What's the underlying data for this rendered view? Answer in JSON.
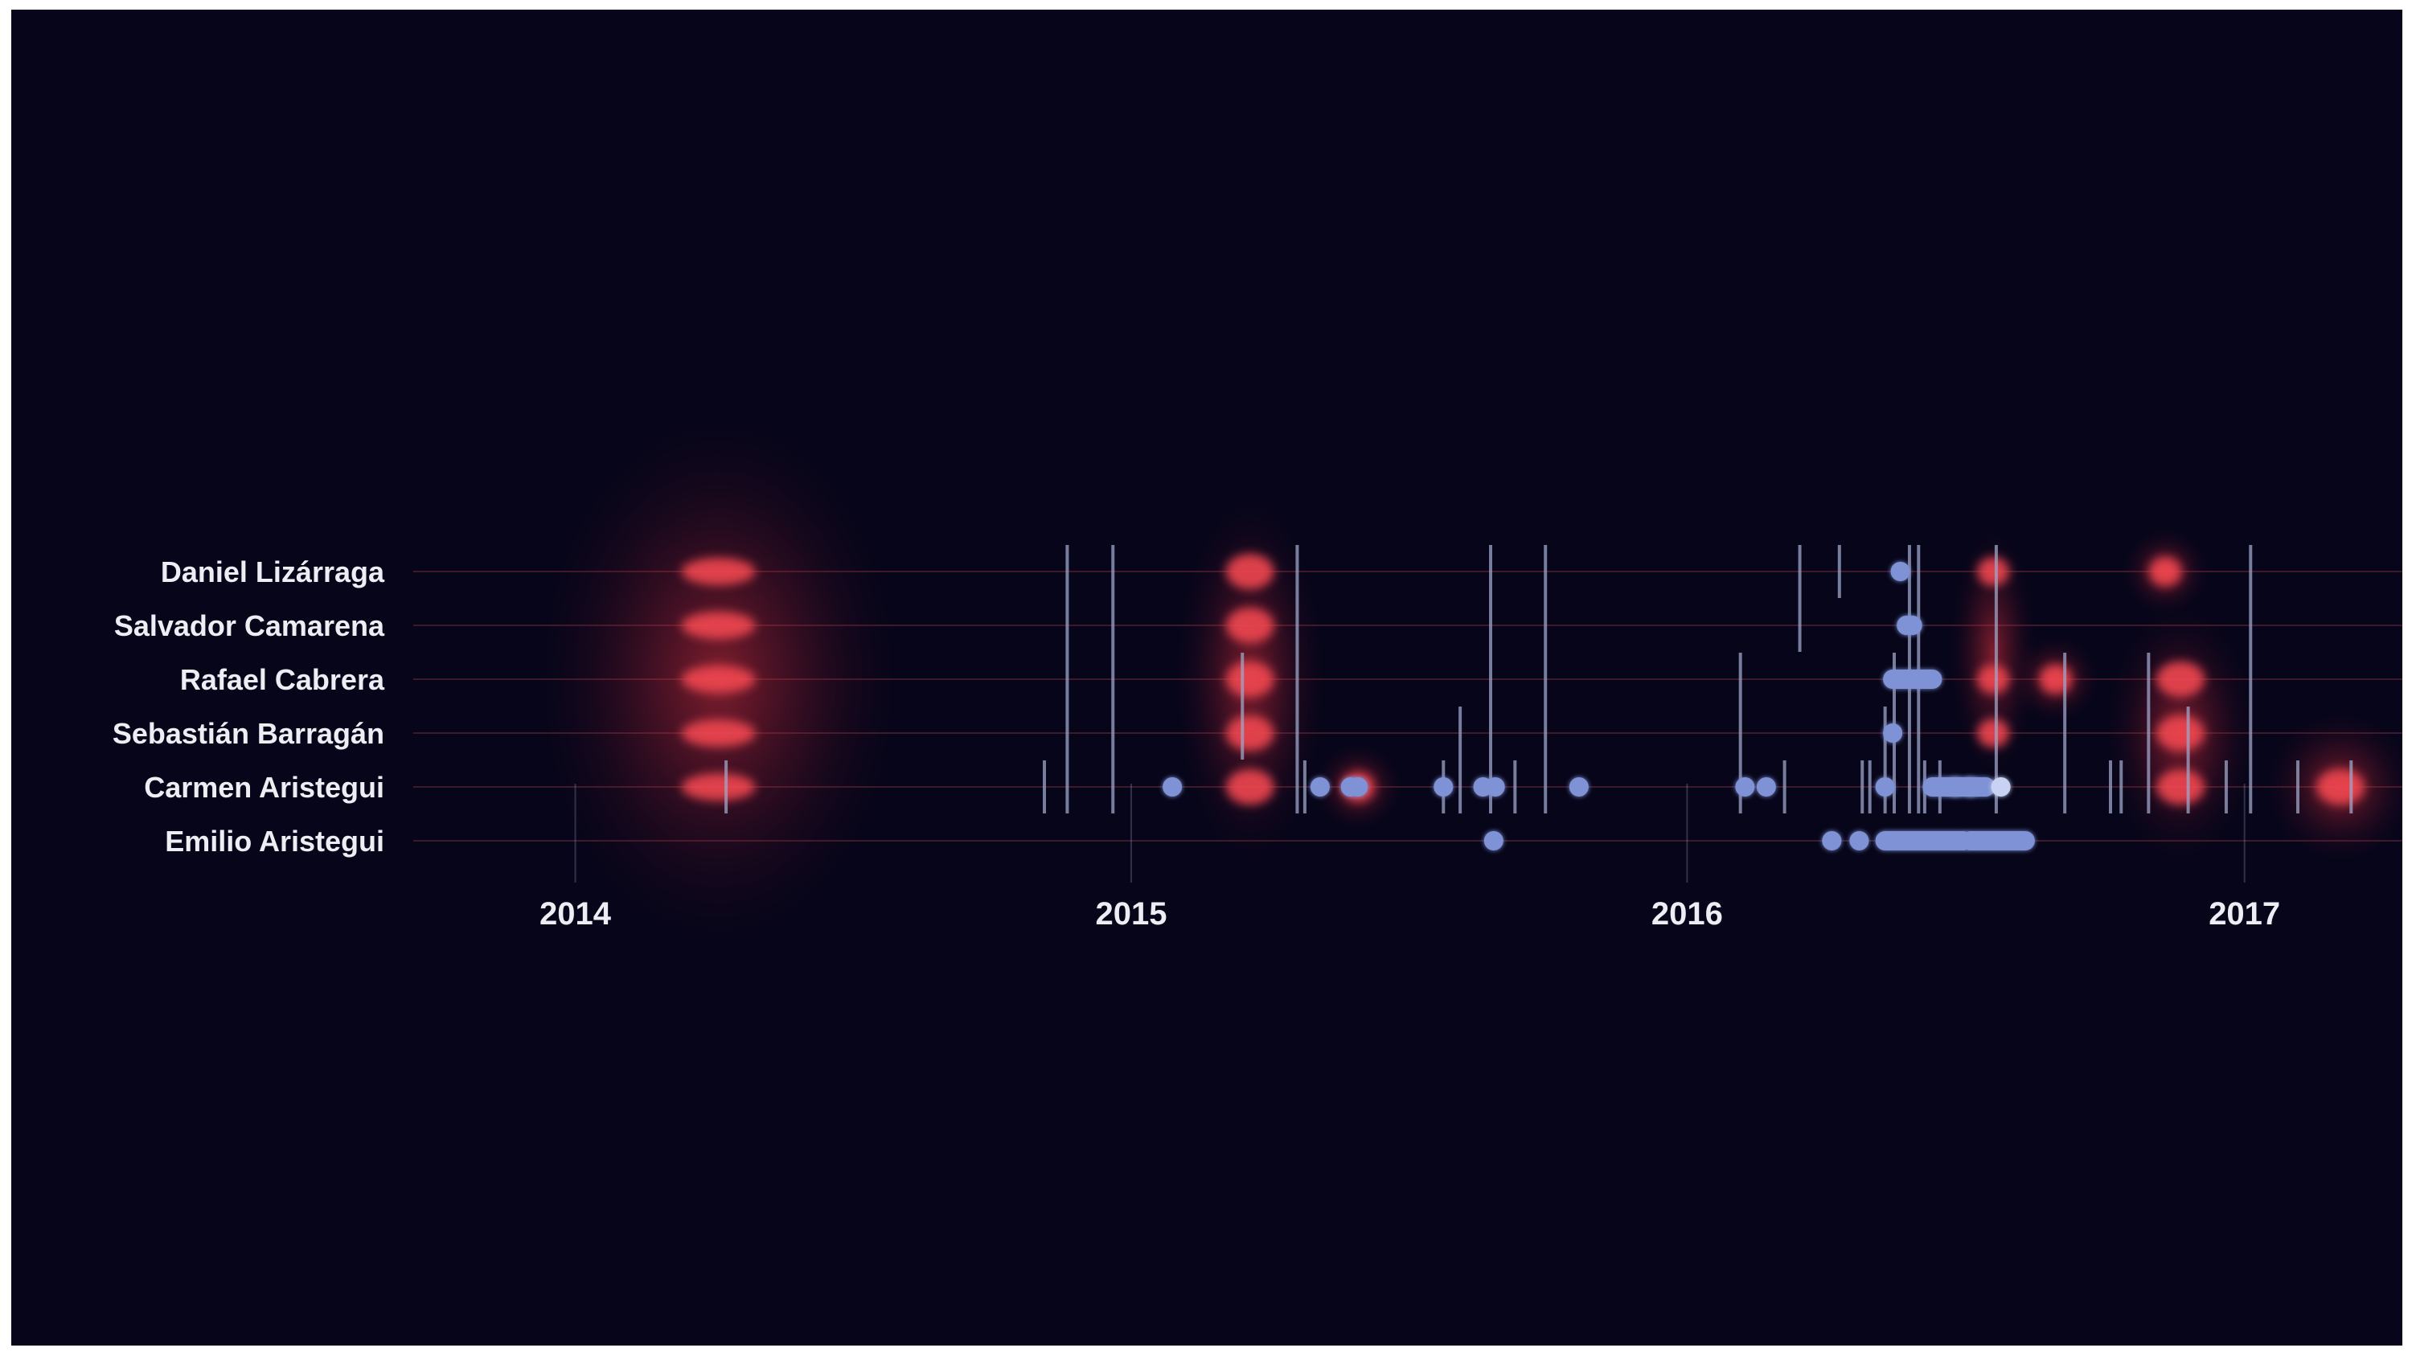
{
  "chart_data": {
    "type": "scatter",
    "x_type": "date",
    "xlim": [
      "2013-11-01",
      "2017-05-01"
    ],
    "xticks": [
      {
        "date": "2014-01-01",
        "label": "2014"
      },
      {
        "date": "2015-01-01",
        "label": "2015"
      },
      {
        "date": "2016-01-01",
        "label": "2016"
      },
      {
        "date": "2017-01-01",
        "label": "2017"
      }
    ],
    "rows": [
      "Daniel Lizárraga",
      "Salvador Camarena",
      "Rafael Cabrera",
      "Sebastián Barragán",
      "Carmen Aristegui",
      "Emilio Aristegui"
    ],
    "colors": {
      "background": "#06051a",
      "red_glow": "#e0323c",
      "red_core": "#f04650",
      "blue_dot": "#7f92d6",
      "blue_light": "#c9d2f2",
      "event_line": "#9da6c8",
      "row_line": "#6e2a38",
      "label": "#eceef4"
    },
    "red_glows": [
      {
        "date": "2014-04-05",
        "rows": [
          0,
          1,
          2,
          3,
          4
        ],
        "size": "large"
      },
      {
        "date": "2015-03-20",
        "rows": [
          0,
          1,
          2,
          3,
          4
        ],
        "size": "medium"
      },
      {
        "date": "2015-05-30",
        "rows": [
          4
        ],
        "size": "small"
      },
      {
        "date": "2016-07-20",
        "rows": [
          0,
          2,
          3
        ],
        "size": "small"
      },
      {
        "date": "2016-08-30",
        "rows": [
          2
        ],
        "size": "small"
      },
      {
        "date": "2016-11-10",
        "rows": [
          0
        ],
        "size": "small"
      },
      {
        "date": "2016-11-20",
        "rows": [
          2,
          3,
          4
        ],
        "size": "medium"
      },
      {
        "date": "2017-03-05",
        "rows": [
          4
        ],
        "size": "medium"
      }
    ],
    "blue_dots": [
      {
        "date": "2015-01-28",
        "row": 4
      },
      {
        "date": "2015-05-05",
        "row": 4
      },
      {
        "date": "2015-05-25",
        "row": 4
      },
      {
        "date": "2015-05-30",
        "row": 4
      },
      {
        "date": "2015-07-25",
        "row": 4
      },
      {
        "date": "2015-08-20",
        "row": 4
      },
      {
        "date": "2015-08-28",
        "row": 4
      },
      {
        "date": "2015-10-22",
        "row": 4
      },
      {
        "date": "2015-08-27",
        "row": 5
      },
      {
        "date": "2016-02-08",
        "row": 4
      },
      {
        "date": "2016-02-22",
        "row": 4
      },
      {
        "date": "2016-04-05",
        "row": 5
      },
      {
        "date": "2016-04-23",
        "row": 5
      },
      {
        "date": "2016-05-10",
        "row": 4
      },
      {
        "date": "2016-05-20",
        "row": 0
      },
      {
        "date": "2016-05-24",
        "row": 1
      },
      {
        "date": "2016-05-28",
        "row": 1
      },
      {
        "date": "2016-05-15",
        "row": 3
      },
      {
        "date": "2016-06-25",
        "row": 4
      },
      {
        "date": "2016-07-05",
        "row": 4
      },
      {
        "date": "2016-07-25",
        "row": 4,
        "light": true
      }
    ],
    "blue_segments": [
      {
        "start": "2016-05-15",
        "end": "2016-06-10",
        "row": 2
      },
      {
        "start": "2016-06-10",
        "end": "2016-07-15",
        "row": 4
      },
      {
        "start": "2016-05-10",
        "end": "2016-06-30",
        "row": 5
      },
      {
        "start": "2016-07-05",
        "end": "2016-08-10",
        "row": 5
      }
    ],
    "event_lines": [
      {
        "date": "2014-04-10",
        "rows": [
          4,
          4
        ]
      },
      {
        "date": "2014-11-05",
        "rows": [
          4,
          4
        ]
      },
      {
        "date": "2014-11-20",
        "rows": [
          0,
          4
        ]
      },
      {
        "date": "2014-12-20",
        "rows": [
          0,
          4
        ]
      },
      {
        "date": "2015-03-15",
        "rows": [
          2,
          3
        ]
      },
      {
        "date": "2015-04-20",
        "rows": [
          0,
          4
        ]
      },
      {
        "date": "2015-04-25",
        "rows": [
          4,
          4
        ]
      },
      {
        "date": "2015-07-25",
        "rows": [
          4,
          4
        ]
      },
      {
        "date": "2015-08-05",
        "rows": [
          3,
          4
        ]
      },
      {
        "date": "2015-08-25",
        "rows": [
          0,
          4
        ]
      },
      {
        "date": "2015-09-10",
        "rows": [
          4,
          4
        ]
      },
      {
        "date": "2015-09-30",
        "rows": [
          0,
          4
        ]
      },
      {
        "date": "2016-02-05",
        "rows": [
          2,
          4
        ]
      },
      {
        "date": "2016-03-05",
        "rows": [
          4,
          4
        ]
      },
      {
        "date": "2016-03-15",
        "rows": [
          0,
          1
        ]
      },
      {
        "date": "2016-04-10",
        "rows": [
          0,
          0
        ]
      },
      {
        "date": "2016-04-25",
        "rows": [
          4,
          4
        ]
      },
      {
        "date": "2016-04-30",
        "rows": [
          4,
          4
        ]
      },
      {
        "date": "2016-05-10",
        "rows": [
          3,
          4
        ]
      },
      {
        "date": "2016-05-16",
        "rows": [
          2,
          4
        ]
      },
      {
        "date": "2016-05-26",
        "rows": [
          0,
          4
        ]
      },
      {
        "date": "2016-06-01",
        "rows": [
          0,
          4
        ]
      },
      {
        "date": "2016-06-05",
        "rows": [
          4,
          4
        ]
      },
      {
        "date": "2016-06-15",
        "rows": [
          4,
          4
        ]
      },
      {
        "date": "2016-07-22",
        "rows": [
          0,
          4
        ]
      },
      {
        "date": "2016-09-05",
        "rows": [
          2,
          4
        ]
      },
      {
        "date": "2016-10-05",
        "rows": [
          4,
          4
        ]
      },
      {
        "date": "2016-10-12",
        "rows": [
          4,
          4
        ]
      },
      {
        "date": "2016-10-30",
        "rows": [
          2,
          4
        ]
      },
      {
        "date": "2016-11-25",
        "rows": [
          3,
          4
        ]
      },
      {
        "date": "2016-12-20",
        "rows": [
          4,
          4
        ]
      },
      {
        "date": "2017-01-05",
        "rows": [
          0,
          4
        ]
      },
      {
        "date": "2017-02-05",
        "rows": [
          4,
          4
        ]
      },
      {
        "date": "2017-03-12",
        "rows": [
          4,
          4
        ]
      },
      {
        "date": "2017-04-20",
        "rows": [
          0,
          5
        ]
      }
    ]
  }
}
